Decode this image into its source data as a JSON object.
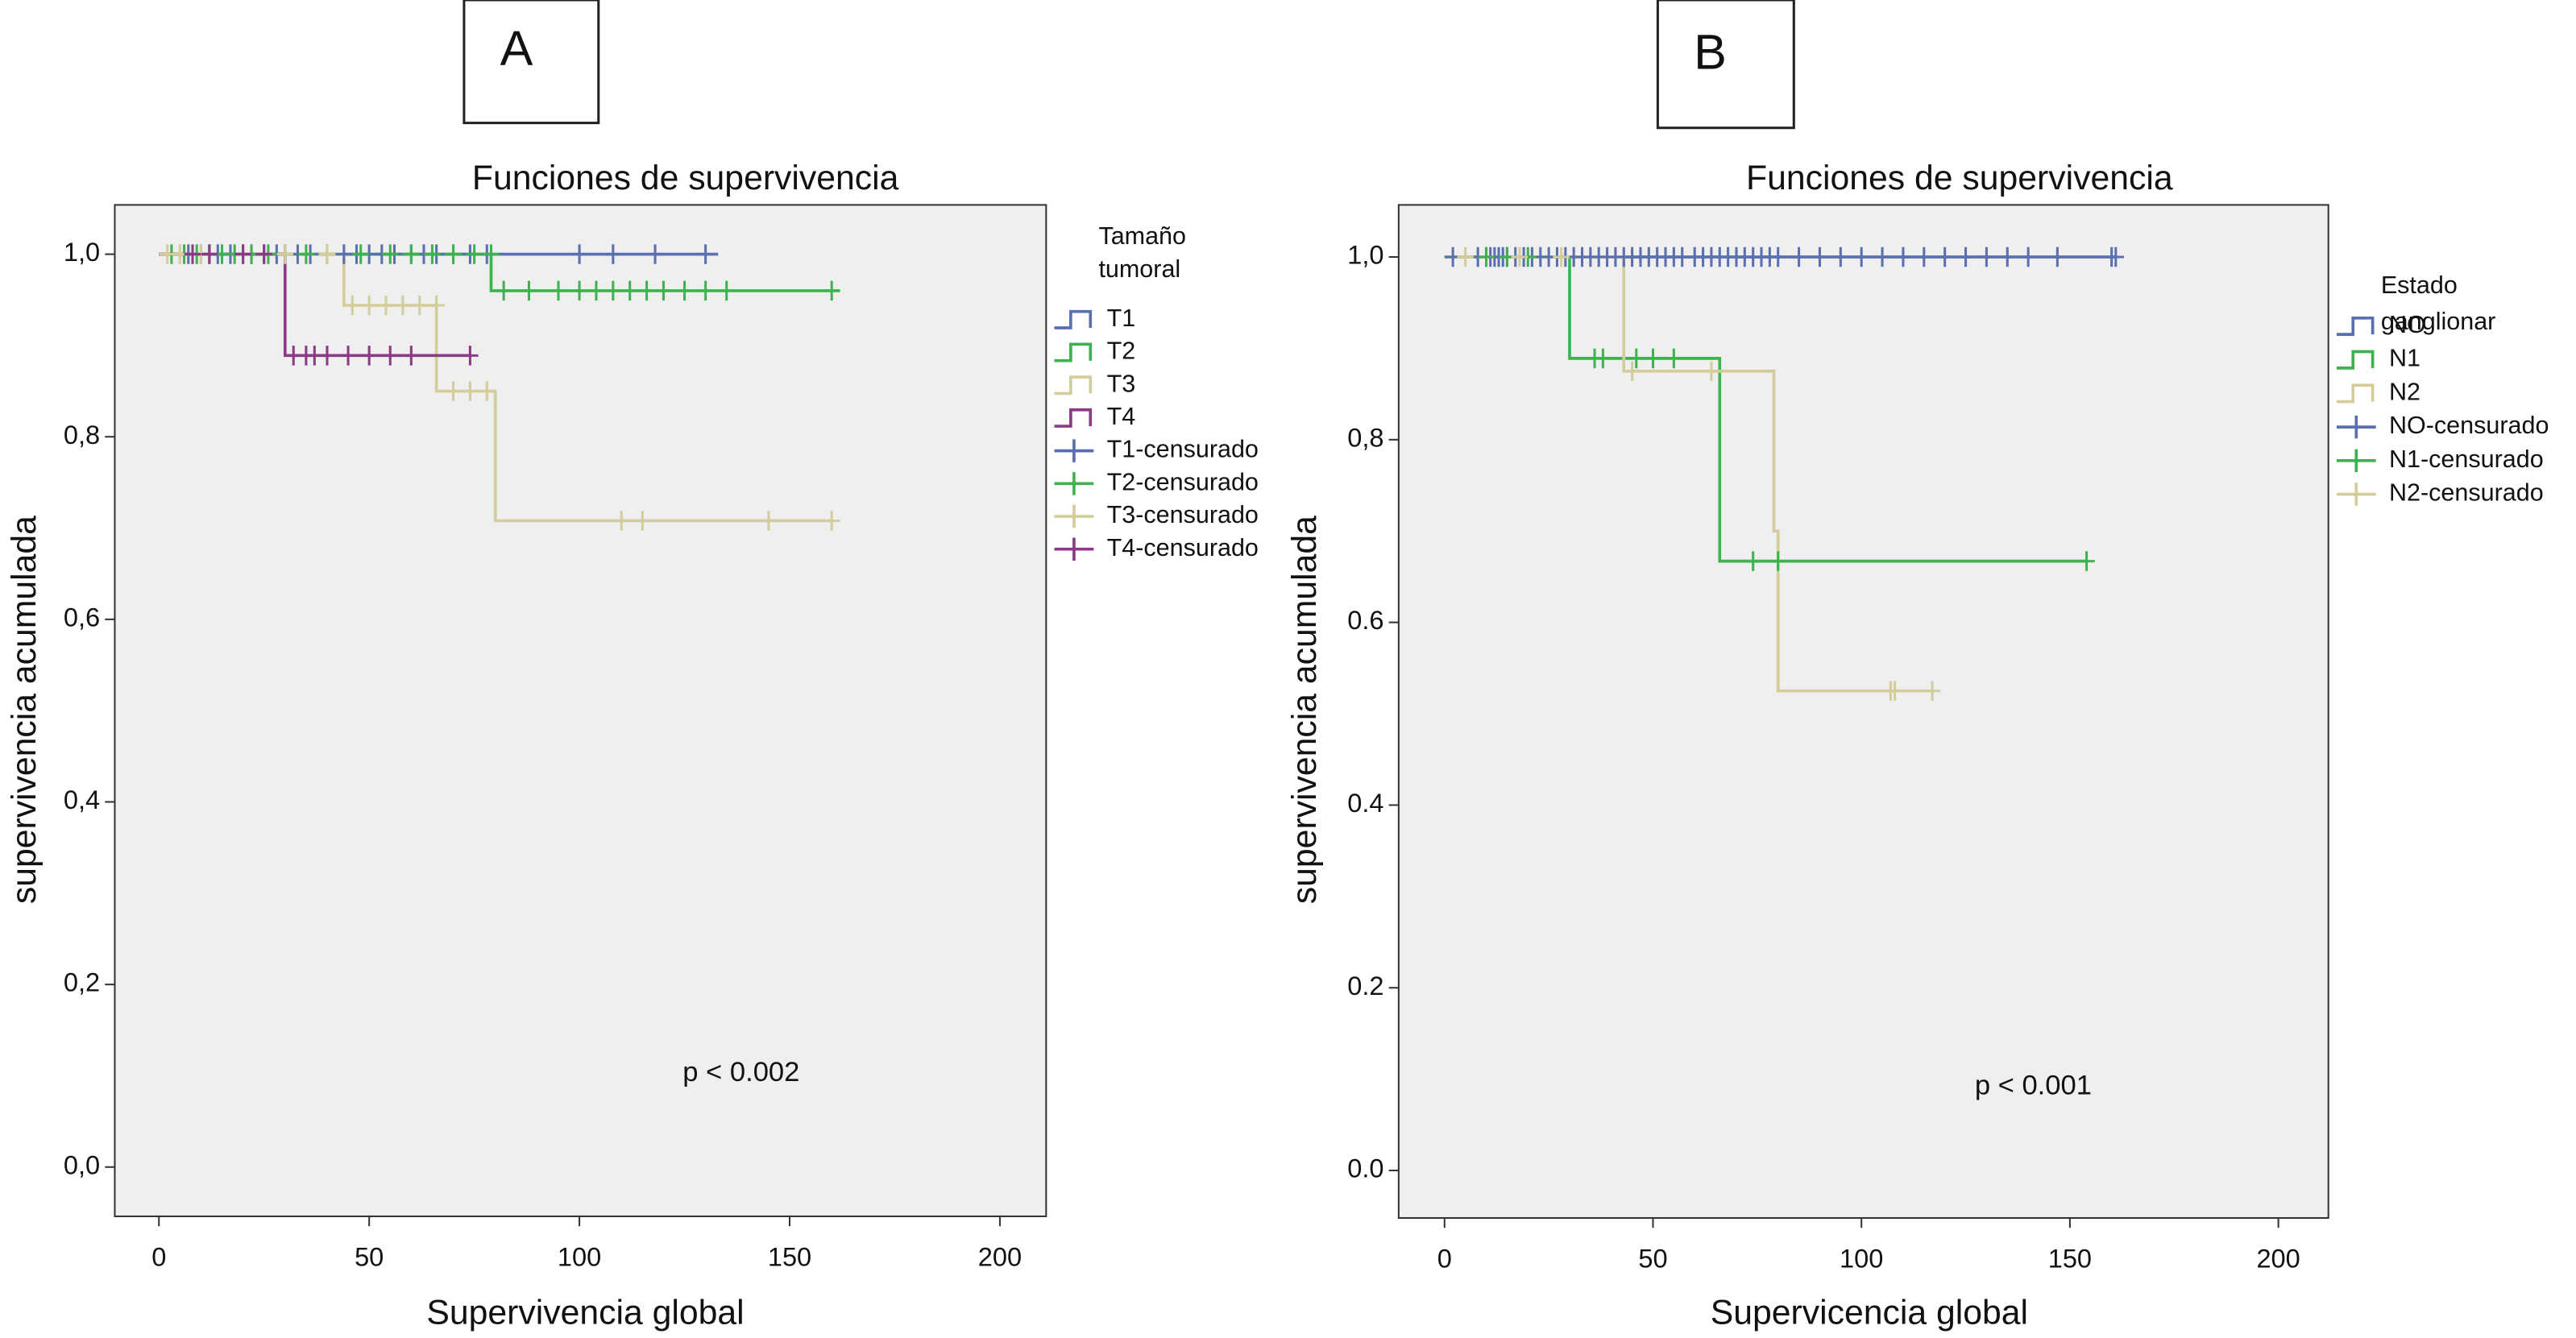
{
  "chart_data": [
    {
      "type": "line",
      "panel_label": "A",
      "title": "Funciones de supervivencia",
      "x_label": "Supervivencia global",
      "y_label": "supervivencia acumulada",
      "legend_title": [
        "Tamaño",
        "tumoral"
      ],
      "annotation": "p < 0.002",
      "xlim": [
        -10.5,
        211
      ],
      "ylim": [
        -0.054,
        1.054
      ],
      "xticks": [
        0,
        50,
        100,
        150,
        200
      ],
      "yticks": [
        {
          "value": 0,
          "label": "0,0"
        },
        {
          "value": 0.2,
          "label": "0,2"
        },
        {
          "value": 0.4,
          "label": "0,4"
        },
        {
          "value": 0.6,
          "label": "0,6"
        },
        {
          "value": 0.8,
          "label": "0,8"
        },
        {
          "value": 1,
          "label": "1,0"
        }
      ],
      "series": [
        {
          "name": "T1",
          "color": "#5a6fb0",
          "marker": "step",
          "x": [
            0,
            133
          ],
          "values": [
            1,
            1
          ]
        },
        {
          "name": "T2",
          "color": "#3fb24f",
          "marker": "step",
          "x": [
            0,
            79,
            79,
            162
          ],
          "values": [
            1,
            1,
            0.96,
            0.96
          ]
        },
        {
          "name": "T3",
          "color": "#d4cc9a",
          "marker": "step",
          "x": [
            0,
            44,
            44,
            66,
            66,
            80,
            80,
            160
          ],
          "values": [
            1,
            1,
            0.944,
            0.944,
            0.85,
            0.85,
            0.708,
            0.708
          ]
        },
        {
          "name": "T4",
          "color": "#8b3a86",
          "marker": "step",
          "x": [
            0,
            30,
            30,
            74
          ],
          "values": [
            1,
            1,
            0.889,
            0.889
          ]
        },
        {
          "name": "T1-censurado",
          "color": "#5a6fb0",
          "marker": "plus",
          "x": [
            7,
            10,
            12,
            14,
            17,
            20,
            22,
            25,
            28,
            30,
            33,
            36,
            40,
            44,
            47,
            50,
            53,
            56,
            60,
            63,
            66,
            70,
            74,
            78,
            100,
            108,
            118,
            130
          ],
          "values": [
            1,
            1,
            1,
            1,
            1,
            1,
            1,
            1,
            1,
            1,
            1,
            1,
            1,
            1,
            1,
            1,
            1,
            1,
            1,
            1,
            1,
            1,
            1,
            1,
            1,
            1,
            1,
            1
          ]
        },
        {
          "name": "T2-censurado",
          "color": "#3fb24f",
          "marker": "plus",
          "x": [
            3,
            6,
            9,
            12,
            15,
            18,
            22,
            26,
            30,
            35,
            40,
            48,
            55,
            60,
            65,
            70,
            75,
            79,
            82,
            88,
            95,
            100,
            104,
            108,
            112,
            116,
            120,
            125,
            130,
            135,
            160
          ],
          "values": [
            1,
            1,
            1,
            1,
            1,
            1,
            1,
            1,
            1,
            1,
            1,
            1,
            1,
            1,
            1,
            1,
            1,
            1,
            0.96,
            0.96,
            0.96,
            0.96,
            0.96,
            0.96,
            0.96,
            0.96,
            0.96,
            0.96,
            0.96,
            0.96,
            0.96
          ]
        },
        {
          "name": "T3-censurado",
          "color": "#d4cc9a",
          "marker": "plus",
          "x": [
            2,
            5,
            10,
            20,
            30,
            40,
            46,
            50,
            54,
            58,
            62,
            66,
            70,
            74,
            78,
            110,
            115,
            145,
            160
          ],
          "values": [
            1,
            1,
            1,
            1,
            1,
            1,
            0.944,
            0.944,
            0.944,
            0.944,
            0.944,
            0.944,
            0.85,
            0.85,
            0.85,
            0.708,
            0.708,
            0.708,
            0.708
          ]
        },
        {
          "name": "T4-censurado",
          "color": "#8b3a86",
          "marker": "plus",
          "x": [
            8,
            12,
            20,
            25,
            32,
            35,
            37,
            40,
            45,
            50,
            55,
            60,
            74
          ],
          "values": [
            1,
            1,
            1,
            1,
            0.889,
            0.889,
            0.889,
            0.889,
            0.889,
            0.889,
            0.889,
            0.889,
            0.889
          ]
        }
      ]
    },
    {
      "type": "line",
      "panel_label": "B",
      "title": "Funciones de supervivencia",
      "x_label": "Supervicencia global",
      "y_label": "supervivencia acumulada",
      "legend_title": [
        "Estado",
        "ganglionar"
      ],
      "annotation": "p < 0.001",
      "xlim": [
        -11,
        212
      ],
      "ylim": [
        -0.052,
        1.057
      ],
      "xticks": [
        0,
        50,
        100,
        150,
        200
      ],
      "yticks": [
        {
          "value": 0,
          "label": "0.0"
        },
        0.2,
        0.4,
        0.6,
        {
          "value": 0.8,
          "label": "0,8"
        },
        {
          "value": 1,
          "label": "1,0"
        }
      ],
      "series": [
        {
          "name": "NO",
          "color": "#5a6fb0",
          "marker": "step",
          "x": [
            0,
            161
          ],
          "values": [
            1,
            1
          ]
        },
        {
          "name": "N1",
          "color": "#3fb24f",
          "marker": "step",
          "x": [
            0,
            30,
            30,
            66,
            66,
            154
          ],
          "values": [
            1,
            1,
            0.889,
            0.889,
            0.667,
            0.667
          ]
        },
        {
          "name": "N2",
          "color": "#d4cc9a",
          "marker": "step",
          "x": [
            0,
            43,
            43,
            79,
            79,
            80,
            80,
            117
          ],
          "values": [
            1,
            1,
            0.875,
            0.875,
            0.7,
            0.7,
            0.525,
            0.525
          ]
        },
        {
          "name": "NO-censurado",
          "color": "#5a6fb0",
          "marker": "plus",
          "x": [
            2,
            8,
            10,
            11,
            12,
            13,
            14,
            15,
            17,
            19,
            21,
            23,
            25,
            27,
            29,
            31,
            33,
            35,
            37,
            39,
            41,
            43,
            45,
            47,
            49,
            51,
            53,
            55,
            57,
            60,
            62,
            64,
            66,
            68,
            70,
            72,
            74,
            76,
            78,
            80,
            85,
            90,
            95,
            100,
            105,
            110,
            115,
            120,
            125,
            130,
            135,
            140,
            147,
            160,
            161
          ],
          "values": [
            1,
            1,
            1,
            1,
            1,
            1,
            1,
            1,
            1,
            1,
            1,
            1,
            1,
            1,
            1,
            1,
            1,
            1,
            1,
            1,
            1,
            1,
            1,
            1,
            1,
            1,
            1,
            1,
            1,
            1,
            1,
            1,
            1,
            1,
            1,
            1,
            1,
            1,
            1,
            1,
            1,
            1,
            1,
            1,
            1,
            1,
            1,
            1,
            1,
            1,
            1,
            1,
            1,
            1,
            1
          ]
        },
        {
          "name": "N1-censurado",
          "color": "#3fb24f",
          "marker": "plus",
          "x": [
            10,
            15,
            20,
            36,
            38,
            46,
            50,
            55,
            74,
            80,
            154
          ],
          "values": [
            1,
            1,
            1,
            0.889,
            0.889,
            0.889,
            0.889,
            0.889,
            0.667,
            0.667,
            0.667
          ]
        },
        {
          "name": "N2-censurado",
          "color": "#d4cc9a",
          "marker": "plus",
          "x": [
            5,
            18,
            28,
            45,
            64,
            107,
            108,
            117
          ],
          "values": [
            1,
            1,
            1,
            0.875,
            0.875,
            0.525,
            0.525,
            0.525
          ]
        }
      ]
    }
  ]
}
